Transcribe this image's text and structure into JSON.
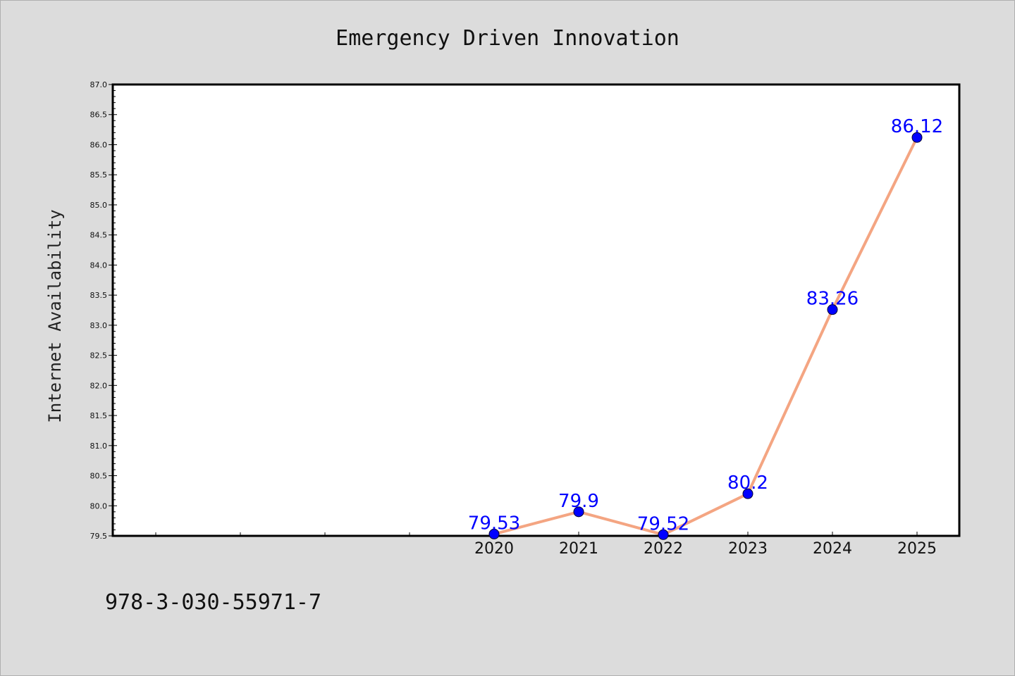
{
  "chart_data": {
    "type": "line",
    "title": "Emergency Driven Innovation",
    "ylabel": "Internet Availability",
    "xlabel": "",
    "categories": [
      "2020",
      "2021",
      "2022",
      "2023",
      "2024",
      "2025"
    ],
    "values": [
      79.53,
      79.9,
      79.52,
      80.2,
      83.26,
      86.12
    ],
    "data_labels": [
      "79.53",
      "79.9",
      "79.52",
      "80.2",
      "83.26",
      "86.12"
    ],
    "ylim": [
      79.5,
      87.0
    ],
    "yticks": [
      "79.5",
      "80.0",
      "80.5",
      "81.0",
      "81.5",
      "82.0",
      "82.5",
      "83.0",
      "83.5",
      "84.0",
      "84.5",
      "85.0",
      "85.5",
      "86.0",
      "86.5",
      "87.0"
    ],
    "grid": false,
    "legend": "none",
    "colors": {
      "line": "#f4a582",
      "marker": "#0000ff",
      "data_label": "#0000ff",
      "background": "#dcdcdc",
      "plot_background": "#ffffff"
    }
  },
  "footer": {
    "isbn": "978-3-030-55971-7"
  }
}
